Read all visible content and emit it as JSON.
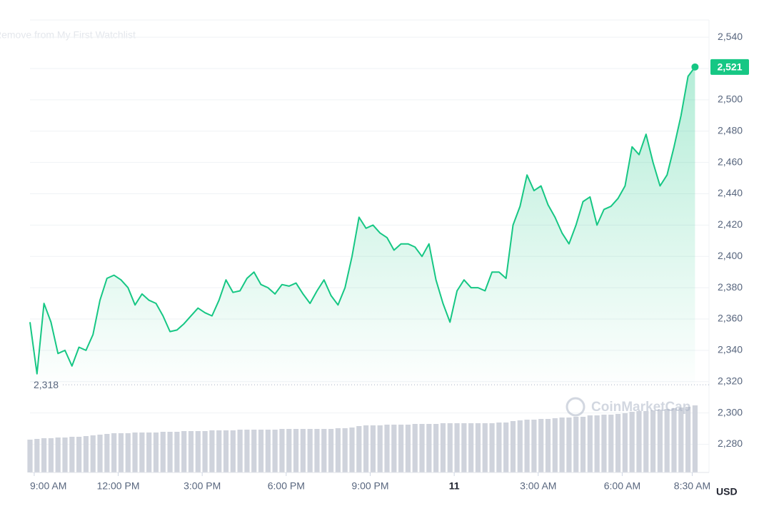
{
  "chart_data": {
    "type": "area",
    "tooltip": "Remove from My First Watchlist",
    "watermark": "CoinMarketCap",
    "currency": "USD",
    "color": "#16c784",
    "volume_color": "#cfd3dc",
    "grid": true,
    "xlim": [
      -0.15,
      24.1
    ],
    "ylim": [
      2262,
      2551
    ],
    "volume_lim": [
      0,
      100
    ],
    "xticks": [
      {
        "value": 0,
        "label": "9:00 AM"
      },
      {
        "value": 3,
        "label": "12:00 PM"
      },
      {
        "value": 6,
        "label": "3:00 PM"
      },
      {
        "value": 9,
        "label": "6:00 PM"
      },
      {
        "value": 12,
        "label": "9:00 PM"
      },
      {
        "value": 15,
        "label": "11"
      },
      {
        "value": 18,
        "label": "3:00 AM"
      },
      {
        "value": 21,
        "label": "6:00 AM"
      },
      {
        "value": 23.5,
        "label": "8:30 AM"
      }
    ],
    "yticks": [
      {
        "value": 2280,
        "label": "2,280"
      },
      {
        "value": 2300,
        "label": "2,300"
      },
      {
        "value": 2320,
        "label": "2,320"
      },
      {
        "value": 2340,
        "label": "2,340"
      },
      {
        "value": 2360,
        "label": "2,360"
      },
      {
        "value": 2380,
        "label": "2,380"
      },
      {
        "value": 2400,
        "label": "2,400"
      },
      {
        "value": 2420,
        "label": "2,420"
      },
      {
        "value": 2440,
        "label": "2,440"
      },
      {
        "value": 2460,
        "label": "2,460"
      },
      {
        "value": 2480,
        "label": "2,480"
      },
      {
        "value": 2500,
        "label": "2,500"
      },
      {
        "value": 2520,
        "label": "2,520"
      },
      {
        "value": 2540,
        "label": "2,540"
      }
    ],
    "low": {
      "value": 2318,
      "label": "2,318"
    },
    "last": {
      "value": 2521,
      "label": "2,521"
    },
    "x": [
      -0.15,
      0.1,
      0.35,
      0.6,
      0.85,
      1.1,
      1.35,
      1.6,
      1.85,
      2.1,
      2.35,
      2.6,
      2.85,
      3.1,
      3.35,
      3.6,
      3.85,
      4.1,
      4.35,
      4.6,
      4.85,
      5.1,
      5.35,
      5.6,
      5.85,
      6.1,
      6.35,
      6.6,
      6.85,
      7.1,
      7.35,
      7.6,
      7.85,
      8.1,
      8.35,
      8.6,
      8.85,
      9.1,
      9.35,
      9.6,
      9.85,
      10.1,
      10.35,
      10.6,
      10.85,
      11.1,
      11.35,
      11.6,
      11.85,
      12.1,
      12.35,
      12.6,
      12.85,
      13.1,
      13.35,
      13.6,
      13.85,
      14.1,
      14.35,
      14.6,
      14.85,
      15.1,
      15.35,
      15.6,
      15.85,
      16.1,
      16.35,
      16.6,
      16.85,
      17.1,
      17.35,
      17.6,
      17.85,
      18.1,
      18.35,
      18.6,
      18.85,
      19.1,
      19.35,
      19.6,
      19.85,
      20.1,
      20.35,
      20.6,
      20.85,
      21.1,
      21.35,
      21.6,
      21.85,
      22.1,
      22.35,
      22.6,
      22.85,
      23.1,
      23.35,
      23.6
    ],
    "values": [
      2358,
      2325,
      2370,
      2358,
      2338,
      2340,
      2330,
      2342,
      2340,
      2350,
      2372,
      2386,
      2388,
      2385,
      2380,
      2369,
      2376,
      2372,
      2370,
      2362,
      2352,
      2353,
      2357,
      2362,
      2367,
      2364,
      2362,
      2372,
      2385,
      2377,
      2378,
      2386,
      2390,
      2382,
      2380,
      2376,
      2382,
      2381,
      2383,
      2376,
      2370,
      2378,
      2385,
      2375,
      2369,
      2380,
      2400,
      2425,
      2418,
      2420,
      2415,
      2412,
      2404,
      2408,
      2408,
      2406,
      2400,
      2408,
      2385,
      2370,
      2358,
      2378,
      2385,
      2380,
      2380,
      2378,
      2390,
      2390,
      2386,
      2420,
      2432,
      2452,
      2442,
      2445,
      2433,
      2425,
      2415,
      2408,
      2420,
      2435,
      2438,
      2420,
      2430,
      2432,
      2437,
      2445,
      2470,
      2465,
      2478,
      2460,
      2445,
      2452,
      2470,
      2490,
      2515,
      2521
    ],
    "volume": [
      46,
      47,
      48,
      48,
      49,
      49,
      50,
      50,
      51,
      52,
      53,
      54,
      55,
      55,
      55,
      56,
      56,
      56,
      56,
      57,
      57,
      57,
      58,
      58,
      58,
      58,
      59,
      59,
      59,
      59,
      60,
      60,
      60,
      60,
      60,
      60,
      61,
      61,
      61,
      61,
      61,
      61,
      61,
      61,
      62,
      62,
      63,
      65,
      66,
      66,
      66,
      67,
      67,
      67,
      67,
      68,
      68,
      68,
      68,
      69,
      69,
      69,
      69,
      69,
      69,
      69,
      69,
      70,
      70,
      72,
      73,
      74,
      74,
      75,
      75,
      76,
      77,
      77,
      78,
      78,
      80,
      80,
      81,
      81,
      82,
      83,
      85,
      86,
      86,
      87,
      88,
      89,
      90,
      91,
      92,
      94
    ]
  }
}
